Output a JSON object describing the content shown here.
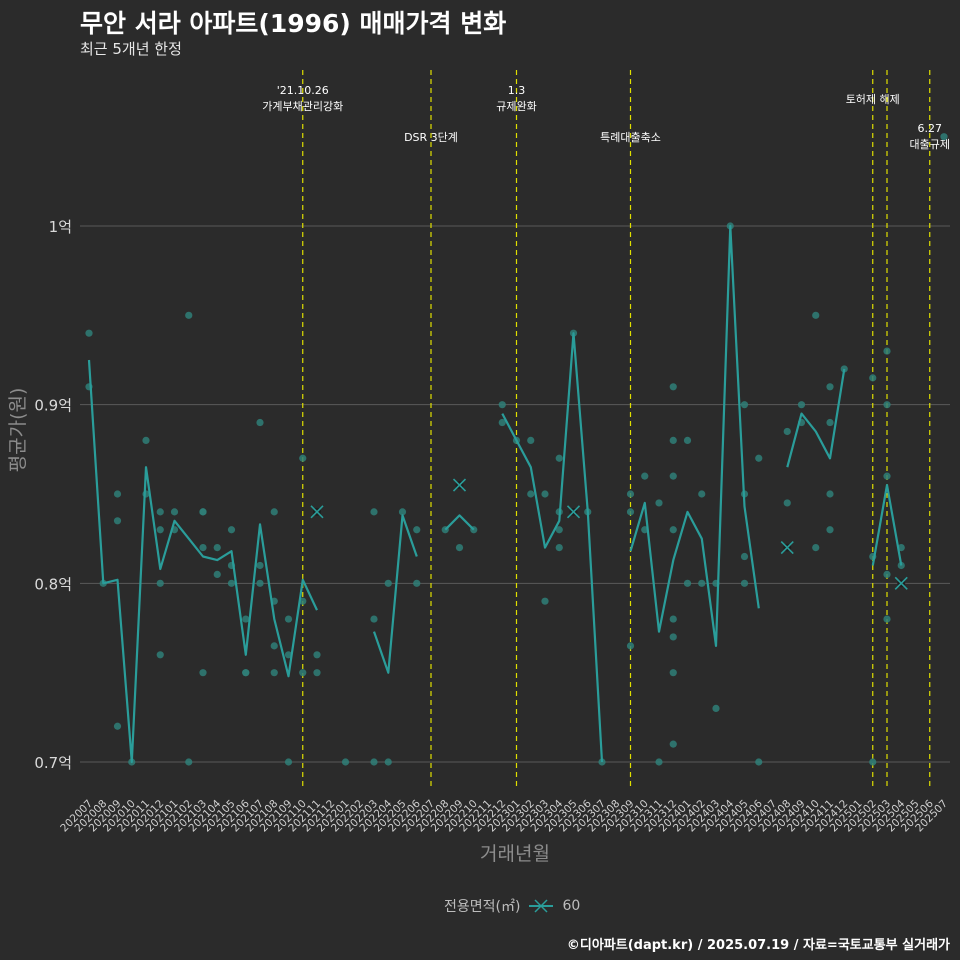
{
  "header": {
    "title": "무안 서라 아파트(1996) 매매가격 변화",
    "subtitle": "최근 5개년 한정"
  },
  "footer": {
    "caption": "©디아파트(dapt.kr) / 2025.07.19 / 자료=국토교통부 실거래가"
  },
  "legend": {
    "title": "전용면적(㎡)",
    "item": "60"
  },
  "colors": {
    "background": "#2b2b2b",
    "line": "#2a9d9a",
    "points": "#2f7f78",
    "events": "#e0e000",
    "grid": "#5a5a5a"
  },
  "chart_data": {
    "type": "line",
    "title": "무안 서라 아파트(1996) 매매가격 변화",
    "xlabel": "거래년월",
    "ylabel": "평균가(원)",
    "ylim": [
      0.685,
      1.05
    ],
    "yticks": [
      {
        "value": 0.7,
        "label": "0.7억"
      },
      {
        "value": 0.8,
        "label": "0.8억"
      },
      {
        "value": 0.9,
        "label": "0.9억"
      },
      {
        "value": 1.0,
        "label": "1억"
      }
    ],
    "categories": [
      "202007",
      "202008",
      "202009",
      "202010",
      "202011",
      "202012",
      "202101",
      "202102",
      "202103",
      "202104",
      "202105",
      "202106",
      "202107",
      "202108",
      "202109",
      "202110",
      "202111",
      "202112",
      "202201",
      "202202",
      "202203",
      "202204",
      "202205",
      "202206",
      "202207",
      "202208",
      "202209",
      "202210",
      "202211",
      "202212",
      "202301",
      "202302",
      "202303",
      "202304",
      "202305",
      "202306",
      "202307",
      "202308",
      "202309",
      "202310",
      "202311",
      "202312",
      "202401",
      "202402",
      "202403",
      "202404",
      "202405",
      "202406",
      "202407",
      "202408",
      "202409",
      "202410",
      "202411",
      "202412",
      "202501",
      "202502",
      "202503",
      "202504",
      "202505",
      "202506",
      "202507"
    ],
    "series": [
      {
        "name": "60",
        "line_segments": [
          [
            [
              0,
              0.925
            ],
            [
              1,
              0.8
            ],
            [
              2,
              0.802
            ],
            [
              3,
              0.7
            ],
            [
              4,
              0.865
            ],
            [
              5,
              0.808
            ],
            [
              6,
              0.835
            ],
            [
              7,
              0.825
            ],
            [
              8,
              0.815
            ],
            [
              9,
              0.813
            ],
            [
              10,
              0.818
            ],
            [
              11,
              0.76
            ],
            [
              12,
              0.833
            ],
            [
              13,
              0.78
            ],
            [
              14,
              0.748
            ],
            [
              15,
              0.802
            ],
            [
              16,
              0.785
            ]
          ],
          [
            [
              20,
              0.773
            ],
            [
              21,
              0.75
            ],
            [
              22,
              0.838
            ],
            [
              23,
              0.815
            ]
          ],
          [
            [
              25,
              0.83
            ],
            [
              26,
              0.838
            ],
            [
              27,
              0.83
            ]
          ],
          [
            [
              29,
              0.895
            ],
            [
              30,
              0.88
            ],
            [
              31,
              0.865
            ],
            [
              32,
              0.82
            ],
            [
              33,
              0.835
            ],
            [
              34,
              0.94
            ],
            [
              35,
              0.84
            ],
            [
              36,
              0.7
            ]
          ],
          [
            [
              38,
              0.818
            ],
            [
              39,
              0.845
            ],
            [
              40,
              0.773
            ],
            [
              41,
              0.813
            ],
            [
              42,
              0.84
            ],
            [
              43,
              0.825
            ],
            [
              44,
              0.765
            ],
            [
              45,
              1.0
            ],
            [
              46,
              0.843
            ],
            [
              47,
              0.786
            ]
          ],
          [
            [
              49,
              0.865
            ],
            [
              50,
              0.895
            ],
            [
              51,
              0.885
            ],
            [
              52,
              0.87
            ],
            [
              53,
              0.92
            ]
          ],
          [
            [
              55,
              0.81
            ],
            [
              56,
              0.855
            ],
            [
              57,
              0.81
            ]
          ]
        ],
        "points": [
          [
            0,
            0.94
          ],
          [
            0,
            0.91
          ],
          [
            1,
            0.8
          ],
          [
            2,
            0.85
          ],
          [
            2,
            0.835
          ],
          [
            2,
            0.72
          ],
          [
            3,
            0.7
          ],
          [
            4,
            0.88
          ],
          [
            4,
            0.85
          ],
          [
            5,
            0.84
          ],
          [
            5,
            0.83
          ],
          [
            5,
            0.8
          ],
          [
            5,
            0.76
          ],
          [
            6,
            0.84
          ],
          [
            6,
            0.83
          ],
          [
            7,
            0.95
          ],
          [
            7,
            0.7
          ],
          [
            8,
            0.84
          ],
          [
            8,
            0.84
          ],
          [
            8,
            0.82
          ],
          [
            8,
            0.75
          ],
          [
            9,
            0.82
          ],
          [
            9,
            0.805
          ],
          [
            10,
            0.83
          ],
          [
            10,
            0.81
          ],
          [
            10,
            0.8
          ],
          [
            11,
            0.78
          ],
          [
            11,
            0.75
          ],
          [
            11,
            0.75
          ],
          [
            12,
            0.89
          ],
          [
            12,
            0.81
          ],
          [
            12,
            0.8
          ],
          [
            13,
            0.84
          ],
          [
            13,
            0.79
          ],
          [
            13,
            0.765
          ],
          [
            13,
            0.75
          ],
          [
            14,
            0.78
          ],
          [
            14,
            0.76
          ],
          [
            14,
            0.7
          ],
          [
            15,
            0.87
          ],
          [
            15,
            0.79
          ],
          [
            15,
            0.75
          ],
          [
            16,
            0.76
          ],
          [
            16,
            0.75
          ],
          [
            18,
            0.7
          ],
          [
            20,
            0.84
          ],
          [
            20,
            0.78
          ],
          [
            20,
            0.7
          ],
          [
            21,
            0.8
          ],
          [
            21,
            0.7
          ],
          [
            22,
            0.84
          ],
          [
            23,
            0.83
          ],
          [
            23,
            0.8
          ],
          [
            25,
            0.83
          ],
          [
            26,
            0.82
          ],
          [
            27,
            0.83
          ],
          [
            29,
            0.9
          ],
          [
            29,
            0.89
          ],
          [
            30,
            0.88
          ],
          [
            31,
            0.88
          ],
          [
            31,
            0.85
          ],
          [
            32,
            0.85
          ],
          [
            32,
            0.79
          ],
          [
            33,
            0.87
          ],
          [
            33,
            0.84
          ],
          [
            33,
            0.83
          ],
          [
            33,
            0.82
          ],
          [
            34,
            0.94
          ],
          [
            35,
            0.84
          ],
          [
            36,
            0.7
          ],
          [
            38,
            0.85
          ],
          [
            38,
            0.84
          ],
          [
            38,
            0.765
          ],
          [
            39,
            0.86
          ],
          [
            39,
            0.83
          ],
          [
            40,
            0.845
          ],
          [
            40,
            0.7
          ],
          [
            41,
            0.91
          ],
          [
            41,
            0.88
          ],
          [
            41,
            0.86
          ],
          [
            41,
            0.83
          ],
          [
            41,
            0.78
          ],
          [
            41,
            0.77
          ],
          [
            41,
            0.75
          ],
          [
            41,
            0.71
          ],
          [
            42,
            0.88
          ],
          [
            42,
            0.8
          ],
          [
            43,
            0.85
          ],
          [
            43,
            0.8
          ],
          [
            44,
            0.8
          ],
          [
            44,
            0.73
          ],
          [
            45,
            1.0
          ],
          [
            46,
            0.9
          ],
          [
            46,
            0.85
          ],
          [
            46,
            0.815
          ],
          [
            46,
            0.8
          ],
          [
            47,
            0.87
          ],
          [
            47,
            0.7
          ],
          [
            49,
            0.885
          ],
          [
            49,
            0.845
          ],
          [
            50,
            0.9
          ],
          [
            50,
            0.89
          ],
          [
            51,
            0.95
          ],
          [
            51,
            0.82
          ],
          [
            52,
            0.91
          ],
          [
            52,
            0.89
          ],
          [
            52,
            0.85
          ],
          [
            52,
            0.83
          ],
          [
            53,
            0.92
          ],
          [
            55,
            0.915
          ],
          [
            55,
            0.815
          ],
          [
            55,
            0.7
          ],
          [
            56,
            0.93
          ],
          [
            56,
            0.9
          ],
          [
            56,
            0.86
          ],
          [
            56,
            0.805
          ],
          [
            56,
            0.78
          ],
          [
            57,
            0.82
          ],
          [
            57,
            0.81
          ],
          [
            60,
            1.05
          ]
        ],
        "single_markers": [
          [
            16,
            0.84
          ],
          [
            26,
            0.855
          ],
          [
            34,
            0.84
          ],
          [
            49,
            0.82
          ],
          [
            57,
            0.8
          ]
        ]
      }
    ],
    "events": [
      {
        "index": 15,
        "lines": [
          "'21.10.26",
          "가계부채관리강화"
        ],
        "level": "top"
      },
      {
        "index": 24,
        "lines": [
          "DSR 3단계"
        ],
        "level": "low"
      },
      {
        "index": 30,
        "lines": [
          "1.3",
          "규제완화"
        ],
        "level": "top"
      },
      {
        "index": 38,
        "lines": [
          "특례대출축소"
        ],
        "level": "low"
      },
      {
        "index": 55,
        "lines": [
          "토허제 해제"
        ],
        "level": "mid"
      },
      {
        "index": 56,
        "lines": [],
        "level": "none"
      },
      {
        "index": 59,
        "lines": [
          "6.27",
          "대출규제"
        ],
        "level": "right"
      }
    ]
  }
}
